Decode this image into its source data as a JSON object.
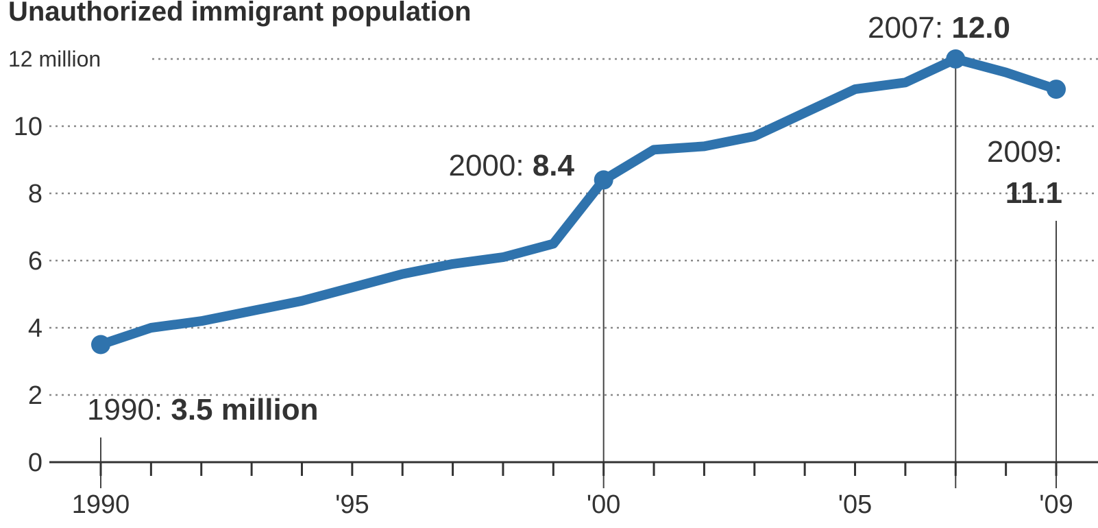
{
  "chart_data": {
    "type": "line",
    "title": "Unauthorized immigrant population",
    "y_unit_label": "12 million",
    "ylim": [
      0,
      12
    ],
    "yticks": [
      0,
      2,
      4,
      6,
      8,
      10,
      12
    ],
    "xlim": [
      1990,
      2009
    ],
    "xticks": [
      1990,
      1995,
      2000,
      2005,
      2009
    ],
    "xtick_labels": [
      "1990",
      "'95",
      "'00",
      "'05",
      "'09"
    ],
    "grid": true,
    "color": "#2f73ad",
    "x": [
      1990,
      1991,
      1992,
      1993,
      1994,
      1995,
      1996,
      1997,
      1998,
      1999,
      2000,
      2001,
      2002,
      2003,
      2004,
      2005,
      2006,
      2007,
      2008,
      2009
    ],
    "values": [
      3.5,
      4.0,
      4.2,
      4.5,
      4.8,
      5.2,
      5.6,
      5.9,
      6.1,
      6.5,
      8.4,
      9.3,
      9.4,
      9.7,
      10.4,
      11.1,
      11.3,
      12.0,
      11.6,
      11.1
    ],
    "annotations": [
      {
        "x": 1990,
        "y": 3.5,
        "prefix": "1990: ",
        "value": "3.5 million"
      },
      {
        "x": 2000,
        "y": 8.4,
        "prefix": "2000: ",
        "value": "8.4"
      },
      {
        "x": 2007,
        "y": 12.0,
        "prefix": "2007: ",
        "value": "12.0"
      },
      {
        "x": 2009,
        "y": 11.1,
        "prefix": "2009:",
        "value": "11.1"
      }
    ]
  }
}
